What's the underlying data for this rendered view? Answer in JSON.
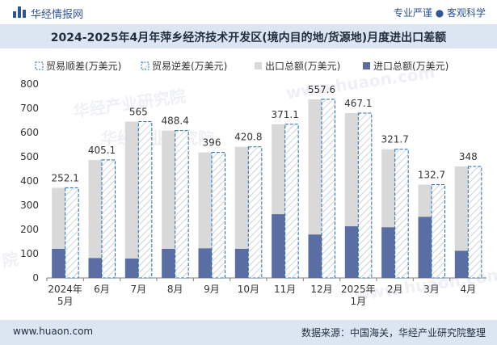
{
  "header": {
    "brand": "华经情报网",
    "tags": "专业严谨 ● 客观科学"
  },
  "title": "2024-2025年4月年萍乡经济技术开发区(境内目的地/货源地)月度进出口差额",
  "footer": {
    "site": "www.huaon.com",
    "source": "数据来源：中国海关，华经产业研究院整理"
  },
  "watermarks": [
    "华经产业研究院",
    "www.huaon.com",
    "华经产业研究院",
    "www.huaon.com",
    "院"
  ],
  "colors": {
    "export": "#d9d9d9",
    "import": "#5b6ea3",
    "deficit_hatch": "#1f6fb5",
    "header_bg": "#dce6f2",
    "brand": "#2f5597"
  },
  "chart_data": {
    "type": "bar",
    "categories": [
      "2024年\n5月",
      "6月",
      "7月",
      "8月",
      "9月",
      "10月",
      "11月",
      "12月",
      "2025年\n1月",
      "2月",
      "3月",
      "4月"
    ],
    "series": [
      {
        "name": "贸易顺差(万美元)",
        "values": [
          0,
          0,
          0,
          0,
          0,
          0,
          0,
          0,
          0,
          0,
          0,
          0
        ]
      },
      {
        "name": "贸易逆差(万美元)",
        "values": [
          252.1,
          405.1,
          565,
          488.4,
          396,
          420.8,
          371.1,
          557.6,
          467.1,
          321.7,
          132.7,
          348
        ]
      },
      {
        "name": "出口总额(万美元)",
        "values": [
          372,
          487,
          645,
          608,
          518,
          541,
          634,
          737,
          680,
          531,
          385,
          460
        ]
      },
      {
        "name": "进口总额(万美元)",
        "values": [
          120,
          82,
          80,
          120,
          122,
          120,
          263,
          179,
          213,
          209,
          252,
          112
        ]
      }
    ],
    "labels": [
      "252.1",
      "405.1",
      "565",
      "488.4",
      "396",
      "420.8",
      "371.1",
      "557.6",
      "467.1",
      "321.7",
      "132.7",
      "348"
    ],
    "yticks": [
      "0",
      "100",
      "200",
      "300",
      "400",
      "500",
      "600",
      "700",
      "800"
    ],
    "ylim": [
      0,
      800
    ],
    "legend_position": "top",
    "grid": false
  }
}
